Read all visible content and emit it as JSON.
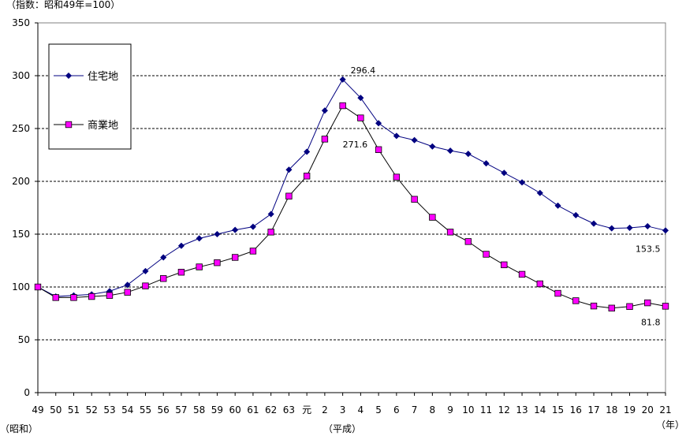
{
  "chart_data": {
    "type": "line",
    "ylabel": "（指数：昭和49年=100）",
    "xlabel": "（年）",
    "era_labels": [
      "（昭和）",
      "（平成）"
    ],
    "categories": [
      "49",
      "50",
      "51",
      "52",
      "53",
      "54",
      "55",
      "56",
      "57",
      "58",
      "59",
      "60",
      "61",
      "62",
      "63",
      "元",
      "2",
      "3",
      "4",
      "5",
      "6",
      "7",
      "8",
      "9",
      "10",
      "11",
      "12",
      "13",
      "14",
      "15",
      "16",
      "17",
      "18",
      "19",
      "20",
      "21"
    ],
    "ylim": [
      0,
      350
    ],
    "yticks": [
      0,
      50,
      100,
      150,
      200,
      250,
      300,
      350
    ],
    "grid": true,
    "legend_position": "top-left",
    "series": [
      {
        "name": "住宅地",
        "color": "#000080",
        "marker": "diamond",
        "values": [
          100,
          91,
          92,
          93,
          96,
          102,
          115,
          128,
          139,
          146,
          150,
          154,
          157,
          169,
          211,
          228,
          267,
          296.4,
          279,
          255,
          243,
          239,
          233,
          229,
          226,
          217,
          208,
          199,
          189,
          177,
          168,
          160,
          155.5,
          156,
          157.5,
          153.5
        ]
      },
      {
        "name": "商業地",
        "color": "#ff00ff",
        "marker": "square",
        "values": [
          100,
          90,
          90,
          91,
          92,
          95,
          101,
          108,
          114,
          119,
          123,
          128,
          134,
          152,
          186,
          205,
          240,
          271.6,
          260,
          230,
          204,
          183,
          166,
          152,
          143,
          131,
          121,
          112,
          103,
          94,
          87,
          82,
          80,
          81.5,
          85,
          81.8
        ]
      }
    ],
    "annotations": [
      {
        "series": 0,
        "index": 17,
        "text": "296.4"
      },
      {
        "series": 1,
        "index": 17,
        "text": "271.6"
      },
      {
        "series": 0,
        "index": 35,
        "text": "153.5"
      },
      {
        "series": 1,
        "index": 35,
        "text": "81.8"
      }
    ]
  }
}
